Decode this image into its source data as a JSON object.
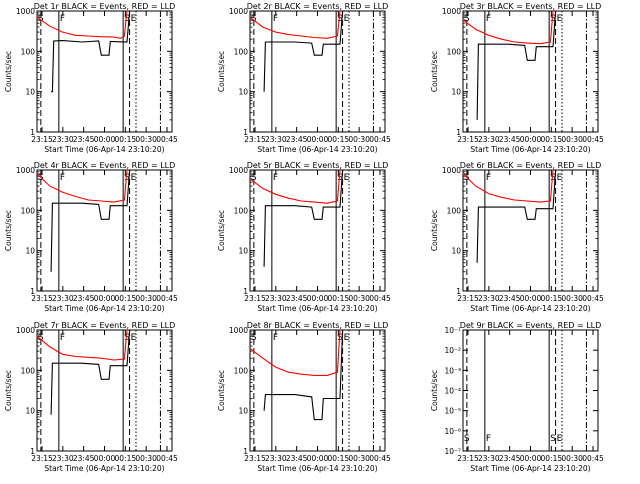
{
  "figure": {
    "colors": {
      "background": "#ffffff",
      "events": "#000000",
      "lld": "#ff0000",
      "axes": "#000000"
    },
    "y_ticks_log": [
      "1",
      "10",
      "100",
      "1000"
    ],
    "x_ticks": [
      "23:15",
      "23:30",
      "23:45",
      "00:00",
      "00:15",
      "00:30",
      "00:45"
    ],
    "xlabel": "Start Time (06-Apr-14 23:10:20)",
    "ylabel": "Counts/sec",
    "markers": {
      "s": "S",
      "f": "F",
      "e": "E"
    }
  },
  "chart_data": [
    {
      "type": "line",
      "title": "Det 1r BLACK = Events, RED = LLD",
      "scale": "log",
      "ylim": [
        1,
        1000
      ],
      "x_minutes_since_start": [
        0,
        5,
        10,
        15,
        20,
        25,
        30,
        35,
        40,
        45,
        50,
        55,
        60,
        65,
        70,
        75,
        80,
        85,
        90,
        95,
        100,
        105
      ],
      "series": [
        {
          "name": "Events",
          "segments": [
            [
              [
                11,
                10
              ],
              [
                12,
                10
              ],
              [
                13,
                180
              ],
              [
                20,
                185
              ],
              [
                35,
                170
              ],
              [
                48,
                180
              ],
              [
                50,
                80
              ],
              [
                56,
                80
              ],
              [
                57,
                175
              ],
              [
                70,
                170
              ],
              [
                72,
                1000
              ]
            ]
          ]
        },
        {
          "name": "LLD",
          "segments": [
            [
              [
                0,
                700
              ],
              [
                10,
                420
              ],
              [
                20,
                300
              ],
              [
                30,
                250
              ],
              [
                40,
                240
              ],
              [
                50,
                230
              ],
              [
                60,
                225
              ],
              [
                65,
                210
              ],
              [
                68,
                240
              ],
              [
                70,
                1000
              ]
            ]
          ]
        }
      ]
    },
    {
      "type": "line",
      "title": "Det 2r BLACK = Events, RED = LLD",
      "scale": "log",
      "ylim": [
        1,
        1000
      ],
      "series": [
        {
          "name": "Events",
          "segments": [
            [
              [
                11,
                10
              ],
              [
                12,
                170
              ],
              [
                35,
                170
              ],
              [
                48,
                160
              ],
              [
                50,
                80
              ],
              [
                56,
                80
              ],
              [
                57,
                150
              ],
              [
                70,
                150
              ],
              [
                72,
                1000
              ]
            ]
          ]
        },
        {
          "name": "LLD",
          "segments": [
            [
              [
                0,
                700
              ],
              [
                10,
                400
              ],
              [
                20,
                300
              ],
              [
                30,
                260
              ],
              [
                40,
                240
              ],
              [
                50,
                220
              ],
              [
                60,
                210
              ],
              [
                68,
                240
              ],
              [
                70,
                1000
              ]
            ]
          ]
        }
      ]
    },
    {
      "type": "line",
      "title": "Det 3r BLACK = Events, RED = LLD",
      "scale": "log",
      "ylim": [
        1,
        1000
      ],
      "series": [
        {
          "name": "Events",
          "segments": [
            [
              [
                11,
                2
              ],
              [
                12,
                150
              ],
              [
                35,
                150
              ],
              [
                48,
                140
              ],
              [
                50,
                60
              ],
              [
                56,
                60
              ],
              [
                57,
                130
              ],
              [
                70,
                130
              ],
              [
                72,
                1000
              ]
            ]
          ]
        },
        {
          "name": "LLD",
          "segments": [
            [
              [
                0,
                600
              ],
              [
                10,
                350
              ],
              [
                20,
                250
              ],
              [
                30,
                200
              ],
              [
                40,
                170
              ],
              [
                50,
                160
              ],
              [
                60,
                155
              ],
              [
                68,
                170
              ],
              [
                70,
                1000
              ]
            ]
          ]
        }
      ]
    },
    {
      "type": "line",
      "title": "Det 4r BLACK = Events, RED = LLD",
      "scale": "log",
      "ylim": [
        1,
        1000
      ],
      "series": [
        {
          "name": "Events",
          "segments": [
            [
              [
                11,
                3
              ],
              [
                12,
                150
              ],
              [
                35,
                150
              ],
              [
                48,
                140
              ],
              [
                50,
                60
              ],
              [
                56,
                60
              ],
              [
                57,
                130
              ],
              [
                70,
                130
              ],
              [
                72,
                1000
              ]
            ]
          ]
        },
        {
          "name": "LLD",
          "segments": [
            [
              [
                0,
                800
              ],
              [
                10,
                400
              ],
              [
                20,
                280
              ],
              [
                30,
                220
              ],
              [
                40,
                180
              ],
              [
                50,
                170
              ],
              [
                60,
                160
              ],
              [
                68,
                180
              ],
              [
                70,
                1000
              ]
            ]
          ]
        }
      ]
    },
    {
      "type": "line",
      "title": "Det 5r BLACK = Events, RED = LLD",
      "scale": "log",
      "ylim": [
        1,
        1000
      ],
      "series": [
        {
          "name": "Events",
          "segments": [
            [
              [
                11,
                4
              ],
              [
                12,
                130
              ],
              [
                35,
                130
              ],
              [
                48,
                120
              ],
              [
                50,
                60
              ],
              [
                56,
                60
              ],
              [
                57,
                120
              ],
              [
                70,
                120
              ],
              [
                72,
                1000
              ]
            ]
          ]
        },
        {
          "name": "LLD",
          "segments": [
            [
              [
                0,
                600
              ],
              [
                10,
                350
              ],
              [
                20,
                250
              ],
              [
                30,
                200
              ],
              [
                40,
                170
              ],
              [
                50,
                160
              ],
              [
                60,
                150
              ],
              [
                68,
                170
              ],
              [
                70,
                1000
              ]
            ]
          ]
        }
      ]
    },
    {
      "type": "line",
      "title": "Det 6r BLACK = Events, RED = LLD",
      "scale": "log",
      "ylim": [
        1,
        1000
      ],
      "series": [
        {
          "name": "Events",
          "segments": [
            [
              [
                11,
                5
              ],
              [
                12,
                120
              ],
              [
                35,
                120
              ],
              [
                48,
                120
              ],
              [
                50,
                60
              ],
              [
                56,
                60
              ],
              [
                57,
                110
              ],
              [
                70,
                110
              ],
              [
                72,
                1000
              ]
            ]
          ]
        },
        {
          "name": "LLD",
          "segments": [
            [
              [
                0,
                800
              ],
              [
                10,
                400
              ],
              [
                20,
                260
              ],
              [
                30,
                210
              ],
              [
                40,
                180
              ],
              [
                50,
                170
              ],
              [
                60,
                160
              ],
              [
                68,
                170
              ],
              [
                70,
                1000
              ]
            ]
          ]
        }
      ]
    },
    {
      "type": "line",
      "title": "Det 7r BLACK = Events, RED = LLD",
      "scale": "log",
      "ylim": [
        1,
        1000
      ],
      "series": [
        {
          "name": "Events",
          "segments": [
            [
              [
                11,
                8
              ],
              [
                12,
                150
              ],
              [
                35,
                150
              ],
              [
                48,
                140
              ],
              [
                50,
                60
              ],
              [
                56,
                60
              ],
              [
                57,
                130
              ],
              [
                70,
                130
              ],
              [
                72,
                1000
              ]
            ]
          ]
        },
        {
          "name": "LLD",
          "segments": [
            [
              [
                0,
                700
              ],
              [
                10,
                380
              ],
              [
                20,
                250
              ],
              [
                30,
                220
              ],
              [
                40,
                210
              ],
              [
                50,
                200
              ],
              [
                60,
                180
              ],
              [
                68,
                190
              ],
              [
                70,
                1000
              ]
            ]
          ]
        }
      ]
    },
    {
      "type": "line",
      "title": "Det 8r BLACK = Events, RED = LLD",
      "scale": "log",
      "ylim": [
        1,
        1000
      ],
      "series": [
        {
          "name": "Events",
          "segments": [
            [
              [
                11,
                10
              ],
              [
                12,
                25
              ],
              [
                35,
                25
              ],
              [
                48,
                22
              ],
              [
                50,
                6
              ],
              [
                56,
                6
              ],
              [
                57,
                20
              ],
              [
                70,
                20
              ],
              [
                72,
                1000
              ]
            ]
          ]
        },
        {
          "name": "LLD",
          "segments": [
            [
              [
                0,
                350
              ],
              [
                10,
                200
              ],
              [
                20,
                120
              ],
              [
                30,
                90
              ],
              [
                40,
                80
              ],
              [
                50,
                75
              ],
              [
                60,
                75
              ],
              [
                68,
                90
              ],
              [
                70,
                1000
              ]
            ]
          ]
        }
      ]
    },
    {
      "type": "line",
      "title": "Det 9r BLACK = Events, RED = LLD",
      "scale": "log",
      "ylim": [
        1e-07,
        0.1
      ],
      "series": [
        {
          "name": "Events",
          "segments": []
        },
        {
          "name": "LLD",
          "segments": []
        }
      ]
    }
  ],
  "panel_extra": {
    "det9_yticks": [
      "10⁻⁷",
      "10⁻⁶",
      "10⁻⁵",
      "10⁻⁴",
      "10⁻³",
      "10⁻²",
      "10⁻¹"
    ]
  }
}
